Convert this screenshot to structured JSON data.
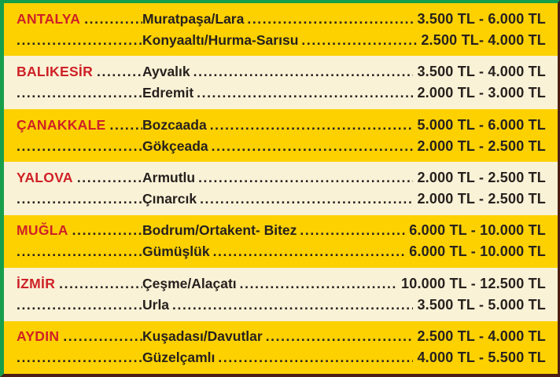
{
  "table": {
    "description_colors": {
      "yellow_band": "#fdd100",
      "cream_band": "#faf2d7",
      "city_red": "#ce2127",
      "ink": "#27211e",
      "green_border": "#179e4b",
      "dark_edge": "#4b1d14"
    },
    "currency": "TL"
  },
  "rows": [
    {
      "city": "ANTALYA",
      "tone": "yellow",
      "entries": [
        {
          "district": "Muratpaşa/Lara",
          "price": "3.500 TL - 6.000 TL"
        },
        {
          "district": "Konyaaltı/Hurma-Sarısu",
          "price": "2.500 TL- 4.000 TL"
        }
      ]
    },
    {
      "city": "BALIKESİR",
      "tone": "cream",
      "entries": [
        {
          "district": "Ayvalık",
          "price": "3.500 TL - 4.000 TL"
        },
        {
          "district": "Edremit",
          "price": "2.000 TL - 3.000 TL"
        }
      ]
    },
    {
      "city": "ÇANAKKALE",
      "tone": "yellow",
      "entries": [
        {
          "district": "Bozcaada",
          "price": "5.000 TL - 6.000 TL"
        },
        {
          "district": "Gökçeada",
          "price": "2.000 TL - 2.500 TL"
        }
      ]
    },
    {
      "city": "YALOVA",
      "tone": "cream",
      "entries": [
        {
          "district": "Armutlu",
          "price": "2.000 TL - 2.500 TL"
        },
        {
          "district": "Çınarcık",
          "price": "2.000 TL - 2.500 TL"
        }
      ]
    },
    {
      "city": "MUĞLA",
      "tone": "yellow",
      "entries": [
        {
          "district": "Bodrum/Ortakent- Bitez",
          "price": "6.000 TL - 10.000 TL"
        },
        {
          "district": "Gümüşlük",
          "price": "6.000 TL - 10.000 TL"
        }
      ]
    },
    {
      "city": "İZMİR",
      "tone": "cream",
      "entries": [
        {
          "district": "Çeşme/Alaçatı",
          "price": "10.000 TL - 12.500 TL"
        },
        {
          "district": "Urla",
          "price": "3.500 TL - 5.000 TL"
        }
      ]
    },
    {
      "city": "AYDIN",
      "tone": "yellow",
      "entries": [
        {
          "district": "Kuşadası/Davutlar",
          "price": "2.500 TL - 4.000 TL"
        },
        {
          "district": "Güzelçamlı",
          "price": "4.000 TL - 5.500 TL"
        }
      ]
    }
  ]
}
